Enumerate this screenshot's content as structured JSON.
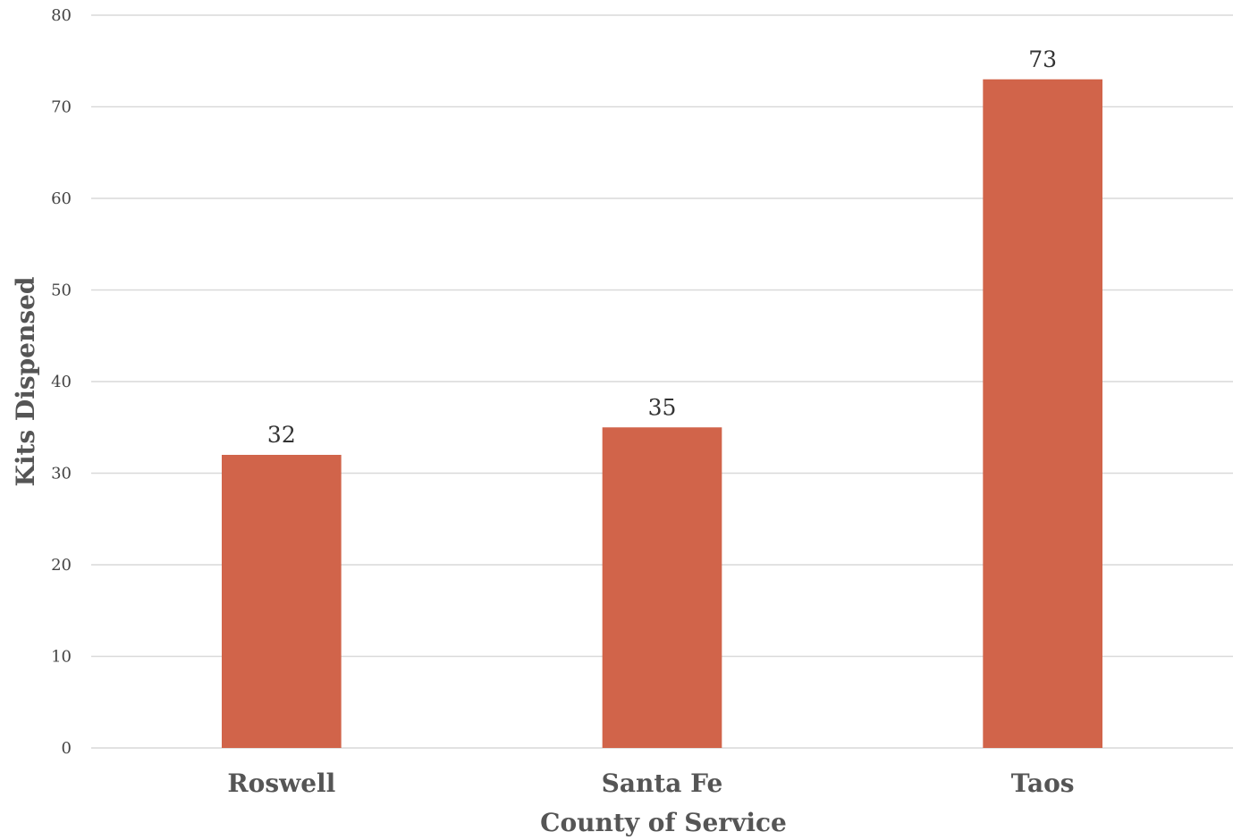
{
  "chart_data": {
    "type": "bar",
    "categories": [
      "Roswell",
      "Santa Fe",
      "Taos"
    ],
    "values": [
      32,
      35,
      73
    ],
    "xlabel": "County of Service",
    "ylabel": "Kits Dispensed",
    "ylim": [
      0,
      80
    ],
    "yticks": [
      0,
      10,
      20,
      30,
      40,
      50,
      60,
      70,
      80
    ],
    "grid": true,
    "data_labels": true,
    "bar_color": "#d1644a"
  }
}
